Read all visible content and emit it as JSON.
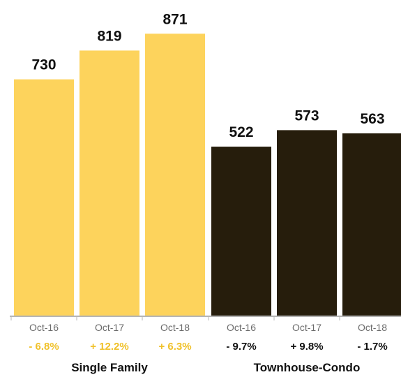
{
  "chart_data": {
    "type": "bar",
    "ylim": [
      0,
      1000
    ],
    "grid": false,
    "colors": {
      "single_family": "#fdd35c",
      "townhouse_condo": "#261d0c",
      "axis": "#b5b5b5"
    },
    "groups": [
      {
        "name": "Single Family",
        "color": "#fdd35c",
        "change_color": "#f0c12a",
        "bars": [
          {
            "label": "Oct-16",
            "value": 730,
            "value_label": "730",
            "change": "- 6.8%"
          },
          {
            "label": "Oct-17",
            "value": 819,
            "value_label": "819",
            "change": "+ 12.2%"
          },
          {
            "label": "Oct-18",
            "value": 871,
            "value_label": "871",
            "change": "+ 6.3%"
          }
        ]
      },
      {
        "name": "Townhouse-Condo",
        "color": "#261d0c",
        "change_color": "#111111",
        "bars": [
          {
            "label": "Oct-16",
            "value": 522,
            "value_label": "522",
            "change": "- 9.7%"
          },
          {
            "label": "Oct-17",
            "value": 573,
            "value_label": "573",
            "change": "+ 9.8%"
          },
          {
            "label": "Oct-18",
            "value": 563,
            "value_label": "563",
            "change": "- 1.7%"
          }
        ]
      }
    ]
  }
}
